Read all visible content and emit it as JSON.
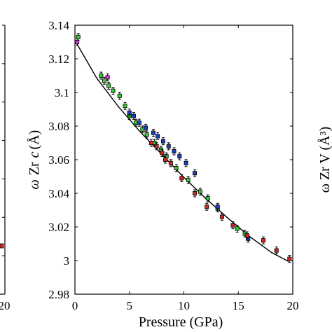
{
  "chart_data": {
    "type": "scatter",
    "xlabel": "Pressure (GPa)",
    "ylabel_symbol": "ω",
    "ylabel_text": "Zr",
    "ylabel_var": "c",
    "ylabel_unit": "(Å)",
    "xlim": [
      0,
      20
    ],
    "ylim": [
      2.98,
      3.14
    ],
    "x_ticks": [
      0,
      5,
      10,
      15,
      20
    ],
    "y_ticks": [
      2.98,
      3.0,
      3.02,
      3.04,
      3.06,
      3.08,
      3.1,
      3.12,
      3.14
    ],
    "x_tick_labels": [
      "0",
      "5",
      "10",
      "15",
      "20"
    ],
    "y_tick_labels": [
      "2.98",
      "3",
      "3.02",
      "3.04",
      "3.06",
      "3.08",
      "3.1",
      "3.12",
      "3.14"
    ],
    "grid": false,
    "left_panel_fragment": {
      "tick_label": "20",
      "y_tick_count": 8,
      "point_color": "#d62728"
    },
    "right_panel_fragment": {
      "label": "ω Zr V (Å³)"
    },
    "fit_curve": {
      "x": [
        0,
        2,
        4,
        6,
        8,
        10,
        12,
        14,
        16,
        18,
        19.6
      ],
      "y": [
        3.131,
        3.1085,
        3.0915,
        3.0765,
        3.063,
        3.0495,
        3.037,
        3.0255,
        3.0145,
        3.005,
        2.9995
      ]
    },
    "series": [
      {
        "color": "#e040e0",
        "x": [
          0.2,
          3.0
        ],
        "y": [
          3.13,
          3.109
        ]
      },
      {
        "color": "#33cc33",
        "x": [
          0.3,
          2.4,
          2.7,
          3.1,
          3.5,
          4.1,
          4.6,
          5.0,
          5.6,
          6.2,
          6.6,
          7.3,
          7.9,
          8.4,
          9.3,
          10.4,
          11.5,
          12.2,
          13.1,
          14.9,
          15.6
        ],
        "y": [
          3.133,
          3.11,
          3.107,
          3.104,
          3.101,
          3.098,
          3.092,
          3.086,
          3.082,
          3.078,
          3.075,
          3.07,
          3.066,
          3.062,
          3.055,
          3.048,
          3.041,
          3.037,
          3.031,
          3.019,
          3.016
        ]
      },
      {
        "color": "#1f3fbf",
        "x": [
          5.0,
          5.4,
          5.9,
          6.5,
          7.2,
          7.6,
          8.1,
          8.6,
          9.1,
          9.6,
          10.2,
          11.0,
          13.1,
          15.9
        ],
        "y": [
          3.088,
          3.086,
          3.082,
          3.079,
          3.076,
          3.074,
          3.071,
          3.068,
          3.065,
          3.062,
          3.058,
          3.052,
          3.032,
          3.013
        ]
      },
      {
        "color": "#d62728",
        "x": [
          7.0,
          7.5,
          8.0,
          8.3,
          8.8,
          9.8,
          11.0,
          12.1,
          13.5,
          14.5,
          15.8,
          17.3,
          18.5,
          19.7
        ],
        "y": [
          3.07,
          3.068,
          3.064,
          3.06,
          3.058,
          3.049,
          3.04,
          3.032,
          3.026,
          3.021,
          3.015,
          3.012,
          3.006,
          3.001
        ]
      }
    ]
  }
}
